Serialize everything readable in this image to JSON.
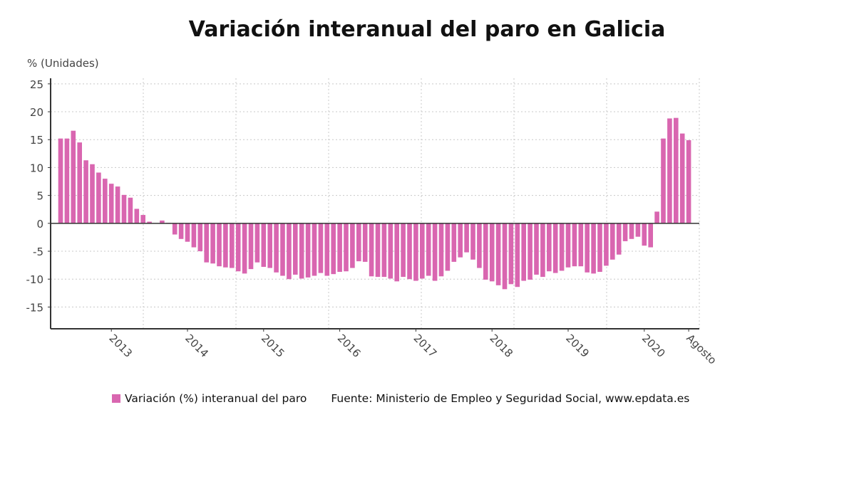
{
  "chart_data": {
    "type": "bar",
    "title": "Variación interanual del paro en Galicia",
    "ylabel": "% (Unidades)",
    "xlabel": "",
    "ylim": [
      -18.9,
      26
    ],
    "yticks": [
      25,
      20,
      15,
      10,
      5,
      0,
      -5,
      -10,
      -15
    ],
    "xtick_labels": [
      {
        "label": "2013",
        "at": "2013-01"
      },
      {
        "label": "2014",
        "at": "2014-01"
      },
      {
        "label": "2015",
        "at": "2015-01"
      },
      {
        "label": "2016",
        "at": "2016-01"
      },
      {
        "label": "2017",
        "at": "2017-01"
      },
      {
        "label": "2018",
        "at": "2018-01"
      },
      {
        "label": "2019",
        "at": "2019-01"
      },
      {
        "label": "2020",
        "at": "2020-01"
      },
      {
        "label": "Agosto",
        "at": "2020-08"
      }
    ],
    "grid": true,
    "legend_placement": "bottom",
    "color": "#d966b0",
    "series": [
      {
        "name": "Variación (%) interanual del paro",
        "start": "2012-05",
        "end": "2020-08",
        "values": [
          15.2,
          15.2,
          16.6,
          14.5,
          11.3,
          10.6,
          9.1,
          8.0,
          7.1,
          6.6,
          5.1,
          4.6,
          2.6,
          1.5,
          0.3,
          0.0,
          0.5,
          0.1,
          -2.0,
          -2.8,
          -3.3,
          -4.3,
          -5.0,
          -7.0,
          -7.2,
          -7.7,
          -7.9,
          -8.0,
          -8.6,
          -9.0,
          -8.2,
          -7.0,
          -7.8,
          -8.0,
          -8.8,
          -9.4,
          -10.0,
          -9.2,
          -9.9,
          -9.7,
          -9.4,
          -8.9,
          -9.4,
          -9.1,
          -8.7,
          -8.6,
          -8.0,
          -6.8,
          -6.9,
          -9.5,
          -9.6,
          -9.6,
          -9.9,
          -10.4,
          -9.6,
          -10.0,
          -10.3,
          -9.9,
          -9.4,
          -10.3,
          -9.5,
          -8.5,
          -6.9,
          -6.1,
          -5.2,
          -6.5,
          -8.0,
          -10.1,
          -10.4,
          -11.1,
          -11.8,
          -10.9,
          -11.4,
          -10.3,
          -10.1,
          -9.2,
          -9.6,
          -8.6,
          -8.9,
          -8.5,
          -7.9,
          -7.7,
          -7.7,
          -8.8,
          -9.0,
          -8.7,
          -7.6,
          -6.5,
          -5.6,
          -3.2,
          -2.8,
          -2.4,
          -4.0,
          -4.3,
          2.1,
          15.2,
          18.8,
          18.9,
          16.1,
          14.9
        ]
      }
    ]
  },
  "legend": {
    "series_label": "Variación (%) interanual del paro",
    "source": "Fuente: Ministerio de Empleo y Seguridad Social, www.epdata.es"
  }
}
